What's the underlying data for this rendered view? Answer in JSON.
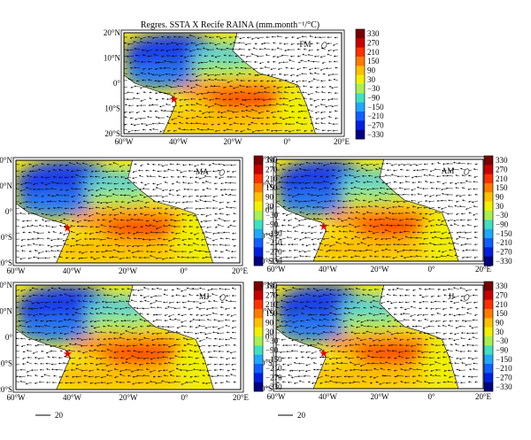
{
  "title": "Regres. SSTA X Recife RAINA (mm.month⁻¹/°C)",
  "colorbar_ticks": [
    "330",
    "270",
    "210",
    "150",
    "90",
    "30",
    "−30",
    "−90",
    "−150",
    "−210",
    "−270",
    "−330"
  ],
  "colorbar_colors": [
    "#7a0000",
    "#c80000",
    "#ff3000",
    "#ff7a00",
    "#ffc000",
    "#f0f000",
    "#a8f050",
    "#40e0c0",
    "#20a8ff",
    "#1060ff",
    "#0020e0",
    "#000080"
  ],
  "lon_ticks": [
    "60°W",
    "40°W",
    "20°W",
    "0°",
    "20°E"
  ],
  "lat_ticks": [
    "20°N",
    "10°N",
    "0°",
    "10°S",
    "20°S"
  ],
  "panels": [
    {
      "label": "FM"
    },
    {
      "label": "MA"
    },
    {
      "label": "AM"
    },
    {
      "label": "MJ"
    },
    {
      "label": "JJ"
    }
  ],
  "vector_scale_label": "20",
  "vector_scale_label_2": "20"
}
